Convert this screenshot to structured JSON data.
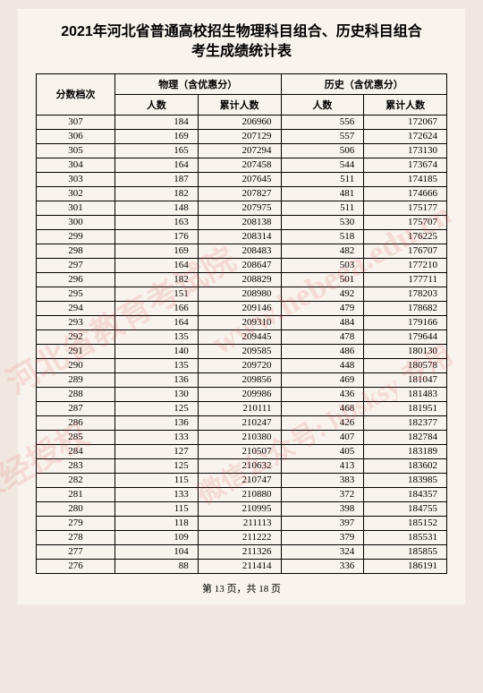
{
  "title_line1": "2021年河北省普通高校招生物理科目组合、历史科目组合",
  "title_line2": "考生成绩统计表",
  "header": {
    "score": "分数档次",
    "phys": "物理（含优惠分）",
    "hist": "历史（含优惠分）",
    "count": "人数",
    "cum": "累计人数"
  },
  "footer": "第 13 页，共 18 页",
  "watermarks": {
    "w1": "河北省教育考试院",
    "w2": "未经授权",
    "w3": "www.hebeea.edu.cn",
    "w4": "微信公众号: hbsksy 专用"
  },
  "rows": [
    {
      "s": 307,
      "pn": 184,
      "pc": 206960,
      "hn": 556,
      "hc": 172067
    },
    {
      "s": 306,
      "pn": 169,
      "pc": 207129,
      "hn": 557,
      "hc": 172624
    },
    {
      "s": 305,
      "pn": 165,
      "pc": 207294,
      "hn": 506,
      "hc": 173130
    },
    {
      "s": 304,
      "pn": 164,
      "pc": 207458,
      "hn": 544,
      "hc": 173674
    },
    {
      "s": 303,
      "pn": 187,
      "pc": 207645,
      "hn": 511,
      "hc": 174185
    },
    {
      "s": 302,
      "pn": 182,
      "pc": 207827,
      "hn": 481,
      "hc": 174666
    },
    {
      "s": 301,
      "pn": 148,
      "pc": 207975,
      "hn": 511,
      "hc": 175177
    },
    {
      "s": 300,
      "pn": 163,
      "pc": 208138,
      "hn": 530,
      "hc": 175707
    },
    {
      "s": 299,
      "pn": 176,
      "pc": 208314,
      "hn": 518,
      "hc": 176225
    },
    {
      "s": 298,
      "pn": 169,
      "pc": 208483,
      "hn": 482,
      "hc": 176707
    },
    {
      "s": 297,
      "pn": 164,
      "pc": 208647,
      "hn": 503,
      "hc": 177210
    },
    {
      "s": 296,
      "pn": 182,
      "pc": 208829,
      "hn": 501,
      "hc": 177711
    },
    {
      "s": 295,
      "pn": 151,
      "pc": 208980,
      "hn": 492,
      "hc": 178203
    },
    {
      "s": 294,
      "pn": 166,
      "pc": 209146,
      "hn": 479,
      "hc": 178682
    },
    {
      "s": 293,
      "pn": 164,
      "pc": 209310,
      "hn": 484,
      "hc": 179166
    },
    {
      "s": 292,
      "pn": 135,
      "pc": 209445,
      "hn": 478,
      "hc": 179644
    },
    {
      "s": 291,
      "pn": 140,
      "pc": 209585,
      "hn": 486,
      "hc": 180130
    },
    {
      "s": 290,
      "pn": 135,
      "pc": 209720,
      "hn": 448,
      "hc": 180578
    },
    {
      "s": 289,
      "pn": 136,
      "pc": 209856,
      "hn": 469,
      "hc": 181047
    },
    {
      "s": 288,
      "pn": 130,
      "pc": 209986,
      "hn": 436,
      "hc": 181483
    },
    {
      "s": 287,
      "pn": 125,
      "pc": 210111,
      "hn": 468,
      "hc": 181951
    },
    {
      "s": 286,
      "pn": 136,
      "pc": 210247,
      "hn": 426,
      "hc": 182377
    },
    {
      "s": 285,
      "pn": 133,
      "pc": 210380,
      "hn": 407,
      "hc": 182784
    },
    {
      "s": 284,
      "pn": 127,
      "pc": 210507,
      "hn": 405,
      "hc": 183189
    },
    {
      "s": 283,
      "pn": 125,
      "pc": 210632,
      "hn": 413,
      "hc": 183602
    },
    {
      "s": 282,
      "pn": 115,
      "pc": 210747,
      "hn": 383,
      "hc": 183985
    },
    {
      "s": 281,
      "pn": 133,
      "pc": 210880,
      "hn": 372,
      "hc": 184357
    },
    {
      "s": 280,
      "pn": 115,
      "pc": 210995,
      "hn": 398,
      "hc": 184755
    },
    {
      "s": 279,
      "pn": 118,
      "pc": 211113,
      "hn": 397,
      "hc": 185152
    },
    {
      "s": 278,
      "pn": 109,
      "pc": 211222,
      "hn": 379,
      "hc": 185531
    },
    {
      "s": 277,
      "pn": 104,
      "pc": 211326,
      "hn": 324,
      "hc": 185855
    },
    {
      "s": 276,
      "pn": 88,
      "pc": 211414,
      "hn": 336,
      "hc": 186191
    }
  ]
}
